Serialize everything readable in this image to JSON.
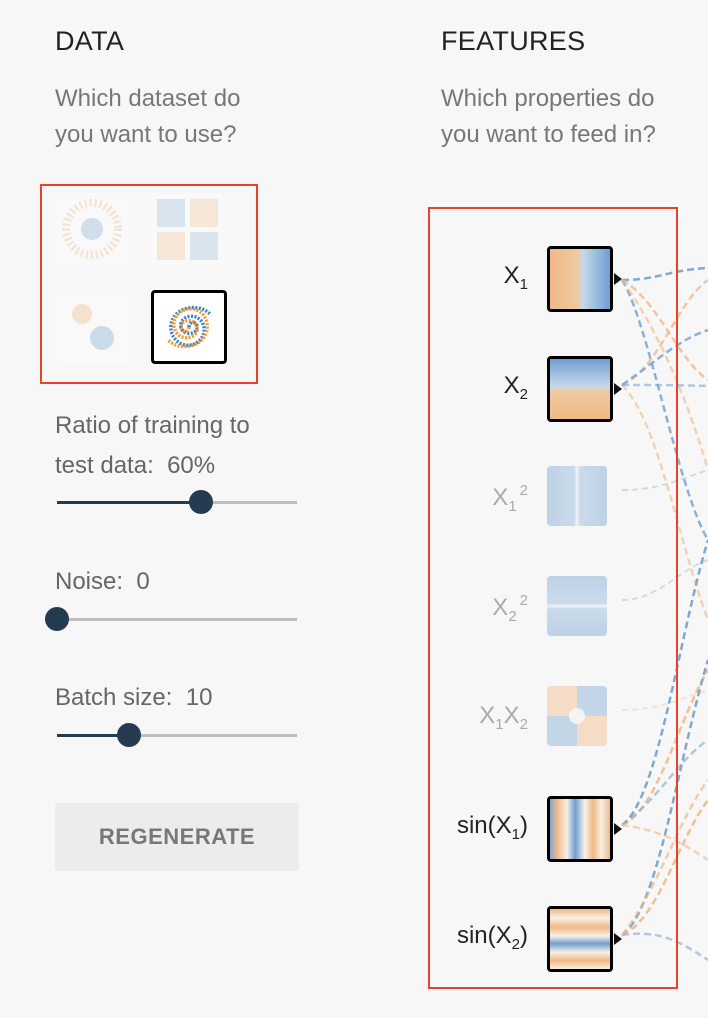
{
  "data_panel": {
    "heading": "DATA",
    "question_line1": "Which dataset do",
    "question_line2": "you want to use?",
    "datasets": [
      {
        "name": "circle",
        "selected": false
      },
      {
        "name": "xor",
        "selected": false
      },
      {
        "name": "gaussian",
        "selected": false
      },
      {
        "name": "spiral",
        "selected": true
      }
    ],
    "ratio_label_line1": "Ratio of training to",
    "ratio_label_line2": "test data:",
    "ratio_value": "60%",
    "ratio_fraction": 0.6,
    "noise_label": "Noise:",
    "noise_value": "0",
    "noise_fraction": 0.0,
    "batch_label": "Batch size:",
    "batch_value": "10",
    "batch_fraction": 0.3,
    "regenerate_label": "REGENERATE"
  },
  "features_panel": {
    "heading": "FEATURES",
    "question_line1": "Which properties do",
    "question_line2": "you want to feed in?",
    "features": [
      {
        "base": "X",
        "sub": "1",
        "active": true
      },
      {
        "base": "X",
        "sub": "2",
        "active": true
      },
      {
        "base": "X",
        "sub": "1",
        "sup": "2",
        "active": false
      },
      {
        "base": "X",
        "sub": "2",
        "sup": "2",
        "active": false
      },
      {
        "active": false
      },
      {
        "base": "sin(X",
        "sub": "1",
        "tail": ")",
        "active": true
      },
      {
        "base": "sin(X",
        "sub": "2",
        "tail": ")",
        "active": true
      }
    ],
    "x1x2_a": "X",
    "x1x2_s1": "1",
    "x1x2_b": "X",
    "x1x2_s2": "2"
  },
  "colors": {
    "orange": "#f0b985",
    "blue": "#7ea9d4",
    "navy": "#253b50",
    "highlight_red": "#e8412c"
  }
}
